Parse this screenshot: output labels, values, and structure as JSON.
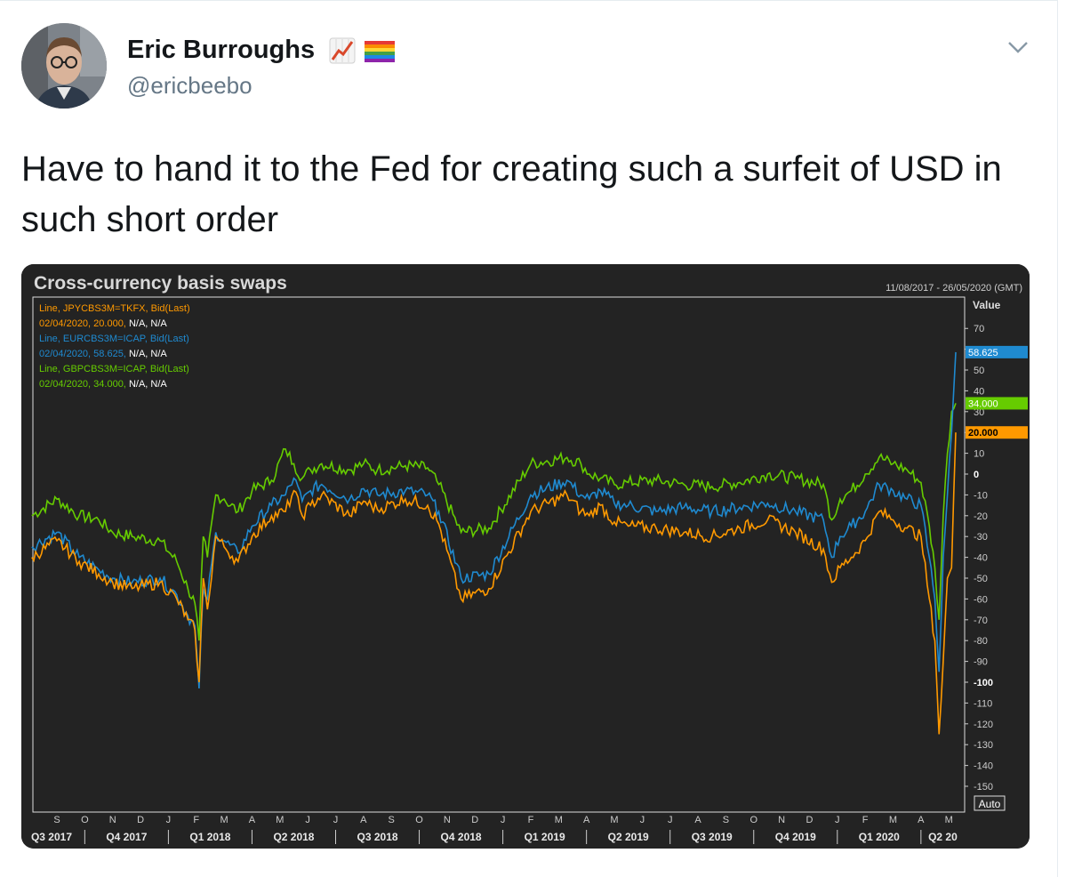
{
  "author": {
    "name": "Eric Burroughs",
    "handle": "@ericbeebo",
    "badges": [
      "chart-increasing-emoji",
      "rainbow-flag-emoji"
    ]
  },
  "tweet": {
    "text": "Have to hand it to the Fed for creating such a surfeit of USD in such short order"
  },
  "icons": {
    "more_menu": "chevron-down-icon"
  },
  "colors": {
    "jpy": "#ff9900",
    "eur": "#1f8ad0",
    "gbp": "#66cc00",
    "chart_bg": "#232323",
    "border": "#dddddd"
  },
  "chart_data": {
    "type": "line",
    "title": "Cross-currency basis swaps",
    "date_range": "11/08/2017 - 26/05/2020 (GMT)",
    "ylabel": "Value",
    "ylim": [
      -155,
      78
    ],
    "yticks": [
      70,
      60,
      50,
      40,
      30,
      20,
      10,
      0,
      -10,
      -20,
      -30,
      -40,
      -50,
      -60,
      -70,
      -80,
      -90,
      -100,
      -110,
      -120,
      -130,
      -140,
      -150
    ],
    "ytick_labels": {
      "70": "70",
      "60": "",
      "50": "50",
      "40": "40",
      "30": "30",
      "20": "",
      "10": "10",
      "0": "0",
      "-10": "-10",
      "-20": "-20",
      "-30": "-30",
      "-40": "-40",
      "-50": "-50",
      "-60": "-60",
      "-70": "-70",
      "-80": "-80",
      "-90": "-90",
      "-100": "-100",
      "-110": "-110",
      "-120": "-120",
      "-130": "-130",
      "-140": "-140",
      "-150": "-150"
    },
    "bold_yticks": [
      "0",
      "-100"
    ],
    "axis_button": "Auto",
    "months": [
      "S",
      "O",
      "N",
      "D",
      "J",
      "F",
      "M",
      "A",
      "M",
      "J",
      "J",
      "A",
      "S",
      "O",
      "N",
      "D",
      "J",
      "F",
      "M",
      "A",
      "M",
      "J",
      "J",
      "A",
      "S",
      "O",
      "N",
      "D",
      "J",
      "F",
      "M",
      "A",
      "M"
    ],
    "quarters": [
      "Q3 2017",
      "Q4 2017",
      "Q1 2018",
      "Q2 2018",
      "Q3 2018",
      "Q4 2018",
      "Q1 2019",
      "Q2 2019",
      "Q3 2019",
      "Q4 2019",
      "Q1 2020",
      "Q2 20"
    ],
    "legend": [
      {
        "line1": "Line, JPYCBS3M=TKFX, Bid(Last)",
        "line2_value": "02/04/2020, 20.000,",
        "line2_na": "N/A, N/A"
      },
      {
        "line1": "Line, EURCBS3M=ICAP, Bid(Last)",
        "line2_value": "02/04/2020, 58.625,",
        "line2_na": "N/A, N/A"
      },
      {
        "line1": "Line, GBPCBS3M=ICAP, Bid(Last)",
        "line2_value": "02/04/2020, 34.000,",
        "line2_na": "N/A, N/A"
      }
    ],
    "x_start_month": 7.5,
    "x_end_month": 40.8,
    "series": [
      {
        "name": "JPYCBS3M=TKFX",
        "color": "#ff9900",
        "last_label": "20.000",
        "x": [
          7.6,
          8.5,
          9.3,
          10,
          10.5,
          11.2,
          12.2,
          12.8,
          13.2,
          13.45,
          13.6,
          13.75,
          13.9,
          14.2,
          14.5,
          15,
          15.5,
          16.2,
          16.7,
          17,
          17.3,
          17.6,
          18,
          19,
          19.5,
          20,
          21,
          21.8,
          22.2,
          23,
          24,
          25.5,
          26.8,
          27.3,
          27.6,
          28,
          28.5,
          29,
          30,
          31,
          32,
          33,
          34,
          35,
          36,
          36.3,
          36.6,
          37,
          37.5,
          38,
          38.5,
          39,
          39.5,
          39.8,
          40.0,
          40.15,
          40.3,
          40.45,
          40.6,
          40.75
        ],
        "y": [
          -40,
          -32,
          -42,
          -48,
          -52,
          -55,
          -52,
          -60,
          -70,
          -75,
          -100,
          -50,
          -65,
          -30,
          -35,
          -42,
          -30,
          -20,
          -18,
          -8,
          -20,
          -15,
          -10,
          -20,
          -13,
          -17,
          -12,
          -15,
          -24,
          -60,
          -55,
          -18,
          -10,
          -18,
          -20,
          -15,
          -23,
          -25,
          -26,
          -28,
          -30,
          -26,
          -22,
          -28,
          -36,
          -52,
          -45,
          -40,
          -32,
          -18,
          -22,
          -26,
          -30,
          -60,
          -80,
          -125,
          -90,
          -50,
          -45,
          20
        ]
      },
      {
        "name": "EURCBS3M=ICAP",
        "color": "#1f8ad0",
        "last_label": "58.625",
        "x": [
          7.6,
          8.5,
          9.3,
          10,
          10.5,
          11.2,
          12.2,
          12.8,
          13.2,
          13.45,
          13.6,
          13.75,
          13.9,
          14.2,
          14.5,
          15,
          15.5,
          16.2,
          16.7,
          17,
          17.3,
          17.6,
          18,
          19,
          19.5,
          20,
          21,
          21.8,
          22.2,
          23,
          24,
          25.5,
          26.8,
          27.3,
          27.6,
          28,
          28.5,
          29,
          30,
          31,
          32,
          33,
          34,
          35,
          36,
          36.3,
          36.6,
          37,
          37.5,
          38,
          38.5,
          39,
          39.5,
          39.8,
          40.0,
          40.15,
          40.3,
          40.45,
          40.6,
          40.75
        ],
        "y": [
          -35,
          -28,
          -40,
          -46,
          -50,
          -52,
          -50,
          -58,
          -68,
          -73,
          -103,
          -55,
          -60,
          -28,
          -32,
          -38,
          -25,
          -15,
          -10,
          -2,
          -13,
          -8,
          -5,
          -12,
          -7,
          -10,
          -8,
          -10,
          -18,
          -50,
          -48,
          -10,
          -3,
          -10,
          -12,
          -8,
          -14,
          -15,
          -18,
          -16,
          -18,
          -16,
          -14,
          -18,
          -22,
          -40,
          -30,
          -25,
          -18,
          -5,
          -8,
          -12,
          -15,
          -40,
          -60,
          -95,
          -40,
          -10,
          20,
          58.6
        ]
      },
      {
        "name": "GBPCBS3M=ICAP",
        "color": "#66cc00",
        "last_label": "34.000",
        "x": [
          7.6,
          8.5,
          9.3,
          10,
          10.5,
          11.2,
          12.2,
          12.8,
          13.2,
          13.45,
          13.6,
          13.75,
          13.9,
          14.2,
          14.5,
          15,
          15.5,
          16.2,
          16.7,
          17,
          17.3,
          17.6,
          18,
          19,
          19.5,
          20,
          21,
          21.8,
          22.2,
          23,
          24,
          25.5,
          26.8,
          27.3,
          27.6,
          28,
          28.5,
          29,
          30,
          31,
          32,
          33,
          34,
          35,
          36,
          36.3,
          36.6,
          37,
          37.5,
          38,
          38.5,
          39,
          39.5,
          39.8,
          40.0,
          40.15,
          40.3,
          40.45,
          40.6,
          40.75
        ],
        "y": [
          -20,
          -12,
          -20,
          -22,
          -28,
          -30,
          -32,
          -42,
          -55,
          -62,
          -80,
          -30,
          -40,
          -10,
          -12,
          -18,
          -8,
          -3,
          12,
          5,
          -2,
          2,
          5,
          2,
          5,
          2,
          4,
          3,
          -5,
          -28,
          -26,
          5,
          8,
          5,
          0,
          -2,
          -5,
          -4,
          -3,
          -5,
          -6,
          -4,
          0,
          -2,
          -5,
          -22,
          -12,
          -8,
          0,
          8,
          5,
          2,
          -4,
          -25,
          -45,
          -70,
          -20,
          10,
          30,
          34
        ]
      }
    ]
  }
}
